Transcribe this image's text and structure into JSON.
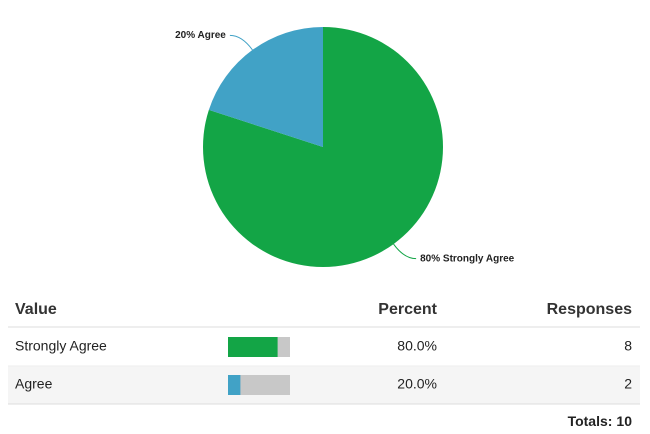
{
  "chart_data": {
    "type": "pie",
    "values": [
      80,
      20
    ],
    "value_labels": [
      "80% Strongly Agree",
      "20% Agree"
    ],
    "colors": [
      "#13a546",
      "#41a2c6"
    ]
  },
  "table": {
    "headers": [
      "Value",
      "Percent",
      "Responses"
    ],
    "rows": [
      [
        "Strongly Agree",
        "80.0%",
        8
      ],
      [
        "Agree",
        "20.0%",
        2
      ]
    ],
    "totals_label": "Totals:",
    "total": 10
  }
}
